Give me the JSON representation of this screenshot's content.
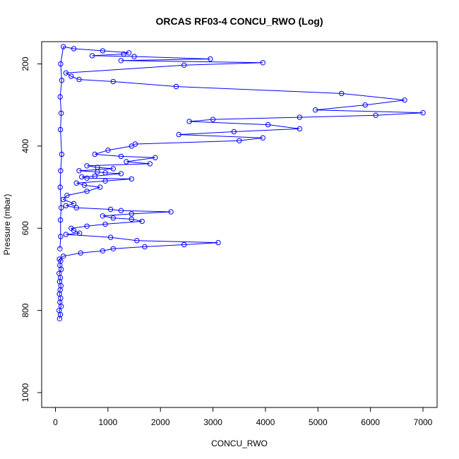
{
  "chart_data": {
    "type": "line",
    "title": "ORCAS RF03-4 CONCU_RWO (Log)",
    "xlabel": "CONCU_RWO",
    "ylabel": "Pressure (mbar)",
    "xlim": [
      0,
      7000
    ],
    "ylim": [
      1030,
      150
    ],
    "y_inverted": true,
    "xticks": [
      0,
      1000,
      2000,
      3000,
      4000,
      5000,
      6000,
      7000
    ],
    "yticks": [
      200,
      400,
      600,
      800,
      1000
    ],
    "grid": false,
    "legend": "none",
    "series": [
      {
        "color": "#0000ff",
        "marker": "open-circle",
        "points": [
          [
            80,
            820
          ],
          [
            95,
            810
          ],
          [
            70,
            800
          ],
          [
            110,
            790
          ],
          [
            85,
            780
          ],
          [
            100,
            770
          ],
          [
            75,
            760
          ],
          [
            90,
            750
          ],
          [
            105,
            740
          ],
          [
            80,
            730
          ],
          [
            95,
            720
          ],
          [
            70,
            710
          ],
          [
            110,
            700
          ],
          [
            85,
            690
          ],
          [
            100,
            680
          ],
          [
            75,
            675
          ],
          [
            150,
            668
          ],
          [
            480,
            660
          ],
          [
            900,
            655
          ],
          [
            1100,
            650
          ],
          [
            1700,
            645
          ],
          [
            2450,
            640
          ],
          [
            3100,
            635
          ],
          [
            1550,
            630
          ],
          [
            1050,
            622
          ],
          [
            200,
            615
          ],
          [
            460,
            612
          ],
          [
            350,
            605
          ],
          [
            300,
            600
          ],
          [
            600,
            595
          ],
          [
            950,
            590
          ],
          [
            1650,
            583
          ],
          [
            1450,
            578
          ],
          [
            1100,
            575
          ],
          [
            900,
            570
          ],
          [
            1450,
            565
          ],
          [
            2200,
            560
          ],
          [
            1250,
            557
          ],
          [
            1050,
            554
          ],
          [
            400,
            550
          ],
          [
            200,
            545
          ],
          [
            350,
            540
          ],
          [
            150,
            530
          ],
          [
            220,
            520
          ],
          [
            600,
            510
          ],
          [
            850,
            500
          ],
          [
            550,
            495
          ],
          [
            400,
            490
          ],
          [
            950,
            485
          ],
          [
            1450,
            480
          ],
          [
            600,
            478
          ],
          [
            500,
            475
          ],
          [
            750,
            473
          ],
          [
            1250,
            467
          ],
          [
            950,
            465
          ],
          [
            800,
            463
          ],
          [
            450,
            460
          ],
          [
            1100,
            455
          ],
          [
            800,
            452
          ],
          [
            600,
            448
          ],
          [
            1800,
            443
          ],
          [
            1350,
            438
          ],
          [
            1900,
            428
          ],
          [
            1250,
            425
          ],
          [
            750,
            420
          ],
          [
            1000,
            410
          ],
          [
            1450,
            400
          ],
          [
            1520,
            395
          ],
          [
            3500,
            387
          ],
          [
            3950,
            380
          ],
          [
            2350,
            372
          ],
          [
            3400,
            365
          ],
          [
            4650,
            358
          ],
          [
            4050,
            348
          ],
          [
            2550,
            340
          ],
          [
            3000,
            335
          ],
          [
            4650,
            330
          ],
          [
            6100,
            325
          ],
          [
            7000,
            319
          ],
          [
            4950,
            312
          ],
          [
            5900,
            300
          ],
          [
            6650,
            288
          ],
          [
            5450,
            272
          ],
          [
            2300,
            255
          ],
          [
            1100,
            243
          ],
          [
            450,
            238
          ],
          [
            300,
            230
          ],
          [
            200,
            222
          ],
          [
            2450,
            203
          ],
          [
            3950,
            197
          ],
          [
            1250,
            192
          ],
          [
            2950,
            188
          ],
          [
            1500,
            182
          ],
          [
            700,
            180
          ],
          [
            1300,
            176
          ],
          [
            1400,
            173
          ],
          [
            900,
            168
          ],
          [
            350,
            163
          ],
          [
            150,
            158
          ],
          [
            100,
            200
          ],
          [
            120,
            240
          ],
          [
            90,
            280
          ],
          [
            110,
            320
          ],
          [
            95,
            360
          ],
          [
            120,
            420
          ],
          [
            100,
            460
          ],
          [
            90,
            500
          ],
          [
            110,
            550
          ],
          [
            95,
            580
          ],
          [
            100,
            620
          ],
          [
            85,
            650
          ]
        ]
      }
    ]
  }
}
